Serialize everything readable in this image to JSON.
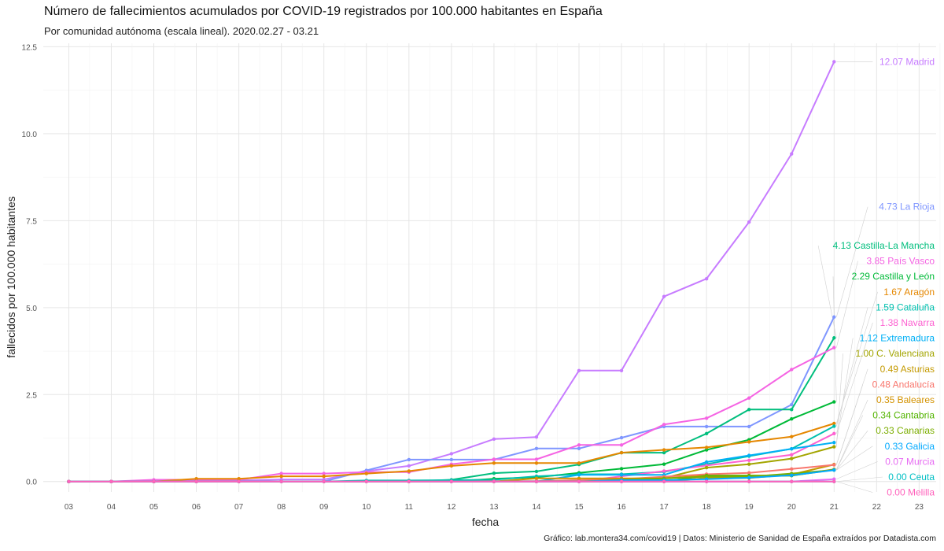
{
  "title": "Número de fallecimientos acumulados por COVID-19 registrados por 100.000 habitantes en España",
  "subtitle": "Por comunidad autónoma (escala lineal). 2020.02.27 - 03.21",
  "caption": "Gráfico: lab.montera34.com/covid19 | Datos: Ministerio de Sanidad de España extraídos por Datadista.com",
  "chart_data": {
    "type": "line",
    "title": "Número de fallecimientos acumulados por COVID-19 registrados por 100.000 habitantes en España",
    "subtitle": "Por comunidad autónoma (escala lineal). 2020.02.27 - 03.21",
    "xlabel": "fecha",
    "ylabel": "fallecidos por 100.000 habitantes",
    "x": [
      3,
      4,
      5,
      6,
      7,
      8,
      9,
      10,
      11,
      12,
      13,
      14,
      15,
      16,
      17,
      18,
      19,
      20,
      21
    ],
    "x_ticks": [
      "03",
      "04",
      "05",
      "06",
      "07",
      "08",
      "09",
      "10",
      "11",
      "12",
      "13",
      "14",
      "15",
      "16",
      "17",
      "18",
      "19",
      "20",
      "21",
      "22",
      "23"
    ],
    "x_range": [
      2.4,
      23.4
    ],
    "y_ticks": [
      "0.0",
      "2.5",
      "5.0",
      "7.5",
      "10.0",
      "12.5"
    ],
    "ylim": [
      -0.3,
      12.6
    ],
    "grid": true,
    "legend": "none (direct labels at right)",
    "series": [
      {
        "name": "Madrid",
        "label": "12.07 Madrid",
        "color": "#c77cff",
        "values": [
          0,
          0,
          0,
          0,
          0,
          0,
          0,
          0,
          0,
          0,
          0,
          0,
          0,
          0,
          0,
          0,
          0,
          0,
          0
        ],
        "override": {
          "3": 0,
          "4": 0,
          "5": 0.03,
          "6": 0.03,
          "7": 0.03,
          "8": 0.06,
          "9": 0.06,
          "10": 0.3,
          "11": 0.45,
          "12": 0.8,
          "13": 1.22,
          "14": 1.28,
          "15": 3.19,
          "16": 3.19,
          "17": 5.32,
          "18": 5.83,
          "19": 7.46,
          "20": 9.42,
          "21": 12.07
        }
      },
      {
        "name": "La Rioja",
        "label": "4.73 La Rioja",
        "color": "#7f96ff",
        "values": [
          0,
          0,
          0,
          0,
          0,
          0,
          0,
          0.32,
          0.63,
          0.63,
          0.63,
          0.95,
          0.95,
          1.26,
          1.58,
          1.58,
          1.58,
          2.21,
          4.73
        ]
      },
      {
        "name": "Castilla-La Mancha",
        "label": "4.13 Castilla-La Mancha",
        "color": "#00be7d",
        "values": [
          0,
          0,
          0,
          0,
          0,
          0,
          0,
          0,
          0,
          0.05,
          0.24,
          0.29,
          0.49,
          0.83,
          0.83,
          1.38,
          2.07,
          2.07,
          4.13
        ]
      },
      {
        "name": "País Vasco",
        "label": "3.85 País Vasco",
        "color": "#f564e3",
        "values": [
          0,
          0,
          0.05,
          0.05,
          0.05,
          0.23,
          0.23,
          0.27,
          0.27,
          0.5,
          0.64,
          0.64,
          1.05,
          1.05,
          1.64,
          1.82,
          2.4,
          3.22,
          3.85
        ]
      },
      {
        "name": "Castilla y León",
        "label": "2.29 Castilla y León",
        "color": "#00ba38",
        "values": [
          0,
          0,
          0,
          0,
          0,
          0,
          0,
          0,
          0,
          0,
          0.08,
          0.12,
          0.25,
          0.37,
          0.5,
          0.91,
          1.2,
          1.8,
          2.29
        ]
      },
      {
        "name": "Aragón",
        "label": "1.67 Aragón",
        "color": "#e58700",
        "values": [
          0,
          0,
          0,
          0.08,
          0.08,
          0.15,
          0.15,
          0.23,
          0.3,
          0.45,
          0.53,
          0.53,
          0.53,
          0.83,
          0.91,
          0.98,
          1.14,
          1.29,
          1.67
        ]
      },
      {
        "name": "Cataluña",
        "label": "1.59 Cataluña",
        "color": "#00c0af",
        "values": [
          0,
          0,
          0,
          0,
          0,
          0,
          0,
          0.03,
          0.03,
          0.04,
          0.05,
          0.15,
          0.21,
          0.21,
          0.28,
          0.5,
          0.73,
          0.94,
          1.59
        ]
      },
      {
        "name": "Navarra",
        "label": "1.38 Navarra",
        "color": "#fd61d1",
        "values": [
          0,
          0,
          0,
          0,
          0,
          0,
          0,
          0,
          0,
          0,
          0,
          0,
          0,
          0.15,
          0.3,
          0.46,
          0.61,
          0.77,
          1.38
        ]
      },
      {
        "name": "Extremadura",
        "label": "1.12 Extremadura",
        "color": "#00b0f6",
        "values": [
          0,
          0,
          0,
          0,
          0,
          0,
          0,
          0,
          0,
          0,
          0,
          0,
          0.19,
          0.19,
          0.19,
          0.56,
          0.75,
          0.94,
          1.12
        ]
      },
      {
        "name": "C. Valenciana",
        "label": "1.00 C. Valenciana",
        "color": "#a3a500",
        "values": [
          0,
          0,
          0,
          0,
          0,
          0,
          0,
          0,
          0,
          0,
          0,
          0,
          0.04,
          0.06,
          0.1,
          0.4,
          0.5,
          0.66,
          1.0
        ]
      },
      {
        "name": "Asturias",
        "label": "0.49 Asturias",
        "color": "#c49a00",
        "values": [
          0,
          0,
          0,
          0,
          0,
          0,
          0,
          0,
          0,
          0,
          0,
          0,
          0,
          0,
          0,
          0.1,
          0.1,
          0.2,
          0.49
        ]
      },
      {
        "name": "Andalucía",
        "label": "0.48 Andalucía",
        "color": "#f8766d",
        "values": [
          0,
          0,
          0,
          0,
          0,
          0,
          0,
          0,
          0,
          0,
          0.01,
          0.01,
          0.04,
          0.07,
          0.14,
          0.21,
          0.25,
          0.36,
          0.48
        ]
      },
      {
        "name": "Baleares",
        "label": "0.35 Baleares",
        "color": "#d39200",
        "values": [
          0,
          0,
          0,
          0,
          0,
          0,
          0,
          0,
          0,
          0,
          0,
          0.09,
          0.09,
          0.09,
          0.09,
          0.17,
          0.17,
          0.17,
          0.35
        ]
      },
      {
        "name": "Cantabria",
        "label": "0.34 Cantabria",
        "color": "#53b400",
        "values": [
          0,
          0,
          0,
          0,
          0,
          0,
          0,
          0,
          0,
          0,
          0,
          0,
          0,
          0,
          0,
          0.17,
          0.17,
          0.17,
          0.34
        ]
      },
      {
        "name": "Canarias",
        "label": "0.33 Canarias",
        "color": "#7cae00",
        "values": [
          0,
          0,
          0,
          0,
          0,
          0,
          0,
          0,
          0,
          0,
          0,
          0,
          0,
          0.05,
          0.09,
          0.14,
          0.14,
          0.23,
          0.33
        ]
      },
      {
        "name": "Galicia",
        "label": "0.33 Galicia",
        "color": "#00a9ff",
        "values": [
          0,
          0,
          0,
          0,
          0,
          0,
          0,
          0,
          0,
          0,
          0,
          0,
          0,
          0.04,
          0.04,
          0.07,
          0.11,
          0.18,
          0.33
        ]
      },
      {
        "name": "Murcia",
        "label": "0.07 Murcia",
        "color": "#e76bf3",
        "values": [
          0,
          0,
          0,
          0,
          0,
          0,
          0,
          0,
          0,
          0,
          0,
          0,
          0,
          0,
          0,
          0,
          0,
          0,
          0.07
        ]
      },
      {
        "name": "Ceuta",
        "label": "0.00 Ceuta",
        "color": "#00bfc4",
        "values": [
          0,
          0,
          0,
          0,
          0,
          0,
          0,
          0,
          0,
          0,
          0,
          0,
          0,
          0,
          0,
          0,
          0,
          0,
          0
        ]
      },
      {
        "name": "Melilla",
        "label": "0.00 Melilla",
        "color": "#ff62bc",
        "values": [
          0,
          0,
          0,
          0,
          0,
          0,
          0,
          0,
          0,
          0,
          0,
          0,
          0,
          0,
          0,
          0,
          0,
          0,
          0
        ]
      }
    ]
  }
}
